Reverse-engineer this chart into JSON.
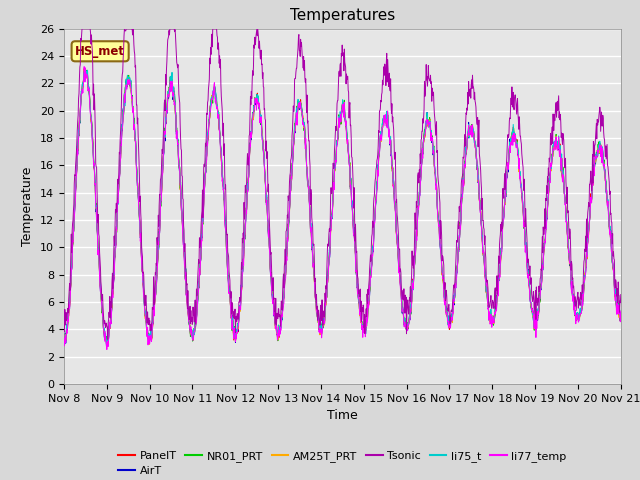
{
  "title": "Temperatures",
  "xlabel": "Time",
  "ylabel": "Temperature",
  "ylim": [
    0,
    26
  ],
  "xlim": [
    0,
    13
  ],
  "yticks": [
    0,
    2,
    4,
    6,
    8,
    10,
    12,
    14,
    16,
    18,
    20,
    22,
    24,
    26
  ],
  "xtick_labels": [
    "Nov 8",
    "Nov 9",
    "Nov 10",
    "Nov 11",
    "Nov 12",
    "Nov 13",
    "Nov 14",
    "Nov 15",
    "Nov 16",
    "Nov 17",
    "Nov 18",
    "Nov 19",
    "Nov 20",
    "Nov 21"
  ],
  "series_colors": {
    "PanelT": "#ff0000",
    "AirT": "#0000cc",
    "NR01_PRT": "#00cc00",
    "AM25T_PRT": "#ffaa00",
    "Tsonic": "#aa00aa",
    "li75_t": "#00cccc",
    "li77_temp": "#ff00ff"
  },
  "annotation_text": "HS_met",
  "background_color": "#e6e6e6",
  "grid_color": "#ffffff",
  "title_fontsize": 11,
  "axis_fontsize": 9,
  "tick_fontsize": 8,
  "legend_fontsize": 8
}
